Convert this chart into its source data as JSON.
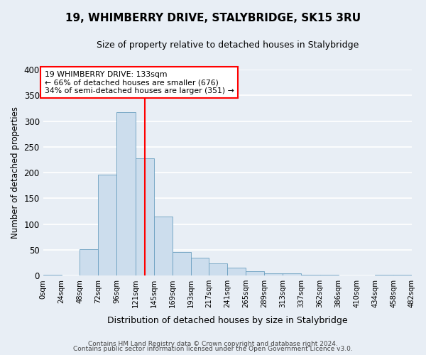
{
  "title": "19, WHIMBERRY DRIVE, STALYBRIDGE, SK15 3RU",
  "subtitle": "Size of property relative to detached houses in Stalybridge",
  "bar_color": "#ccdded",
  "bar_edge_color": "#6a9fc0",
  "background_color": "#e8eef5",
  "grid_color": "#ffffff",
  "ylabel": "Number of detached properties",
  "xlabel": "Distribution of detached houses by size in Stalybridge",
  "bin_edges": [
    0,
    24,
    48,
    72,
    96,
    121,
    145,
    169,
    193,
    217,
    241,
    265,
    289,
    313,
    337,
    362,
    386,
    410,
    434,
    458,
    482
  ],
  "bin_labels": [
    "0sqm",
    "24sqm",
    "48sqm",
    "72sqm",
    "96sqm",
    "121sqm",
    "145sqm",
    "169sqm",
    "193sqm",
    "217sqm",
    "241sqm",
    "265sqm",
    "289sqm",
    "313sqm",
    "337sqm",
    "362sqm",
    "386sqm",
    "410sqm",
    "434sqm",
    "458sqm",
    "482sqm"
  ],
  "counts": [
    2,
    0,
    51,
    196,
    317,
    228,
    115,
    46,
    34,
    24,
    15,
    8,
    5,
    4,
    2,
    1,
    0,
    0,
    2,
    2
  ],
  "vline_x": 133,
  "vline_color": "red",
  "annotation_text": "19 WHIMBERRY DRIVE: 133sqm\n← 66% of detached houses are smaller (676)\n34% of semi-detached houses are larger (351) →",
  "annotation_box_edgecolor": "red",
  "annotation_box_facecolor": "white",
  "ylim": [
    0,
    400
  ],
  "yticks": [
    0,
    50,
    100,
    150,
    200,
    250,
    300,
    350,
    400
  ],
  "footer_line1": "Contains HM Land Registry data © Crown copyright and database right 2024.",
  "footer_line2": "Contains public sector information licensed under the Open Government Licence v3.0."
}
